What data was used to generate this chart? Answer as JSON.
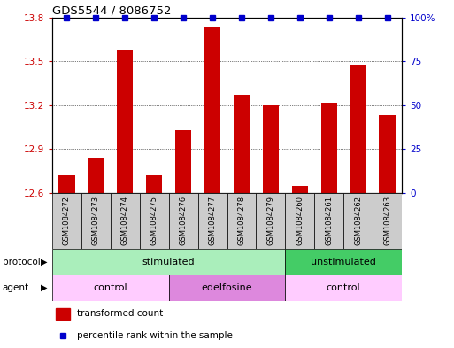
{
  "title": "GDS5544 / 8086752",
  "samples": [
    "GSM1084272",
    "GSM1084273",
    "GSM1084274",
    "GSM1084275",
    "GSM1084276",
    "GSM1084277",
    "GSM1084278",
    "GSM1084279",
    "GSM1084260",
    "GSM1084261",
    "GSM1084262",
    "GSM1084263"
  ],
  "bar_values": [
    12.72,
    12.84,
    13.58,
    12.72,
    13.03,
    13.74,
    13.27,
    13.2,
    12.65,
    13.22,
    13.48,
    13.13
  ],
  "percentile_values": [
    100,
    100,
    100,
    100,
    100,
    100,
    100,
    100,
    100,
    100,
    100,
    100
  ],
  "bar_color": "#cc0000",
  "percentile_color": "#0000cc",
  "ylim_left": [
    12.6,
    13.8
  ],
  "ylim_right": [
    0,
    100
  ],
  "yticks_left": [
    12.6,
    12.9,
    13.2,
    13.5,
    13.8
  ],
  "yticks_right": [
    0,
    25,
    50,
    75,
    100
  ],
  "ytick_labels_right": [
    "0",
    "25",
    "50",
    "75",
    "100%"
  ],
  "protocol_labels": [
    {
      "text": "stimulated",
      "start": 0,
      "end": 8,
      "color": "#aaeebb"
    },
    {
      "text": "unstimulated",
      "start": 8,
      "end": 12,
      "color": "#44cc66"
    }
  ],
  "agent_labels": [
    {
      "text": "control",
      "start": 0,
      "end": 4,
      "color": "#ffccff"
    },
    {
      "text": "edelfosine",
      "start": 4,
      "end": 8,
      "color": "#dd88dd"
    },
    {
      "text": "control",
      "start": 8,
      "end": 12,
      "color": "#ffccff"
    }
  ],
  "legend_bar_label": "transformed count",
  "legend_dot_label": "percentile rank within the sample",
  "protocol_row_label": "protocol",
  "agent_row_label": "agent",
  "background_color": "#ffffff",
  "bar_width": 0.55,
  "sample_box_color": "#cccccc"
}
